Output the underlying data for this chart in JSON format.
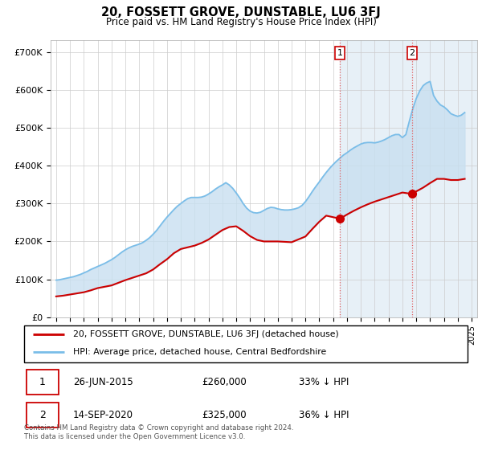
{
  "title": "20, FOSSETT GROVE, DUNSTABLE, LU6 3FJ",
  "subtitle": "Price paid vs. HM Land Registry's House Price Index (HPI)",
  "hpi_color": "#7abde8",
  "price_color": "#cc0000",
  "fill_color": "#c8dff0",
  "background_color": "#ffffff",
  "plot_bg_color": "#ffffff",
  "grid_color": "#cccccc",
  "ylim": [
    0,
    730000
  ],
  "yticks": [
    0,
    100000,
    200000,
    300000,
    400000,
    500000,
    600000,
    700000
  ],
  "ytick_labels": [
    "£0",
    "£100K",
    "£200K",
    "£300K",
    "£400K",
    "£500K",
    "£600K",
    "£700K"
  ],
  "xlim_start": 1994.6,
  "xlim_end": 2025.4,
  "transaction1_x": 2015.48,
  "transaction1_y": 260000,
  "transaction1_label": "1",
  "transaction2_x": 2020.71,
  "transaction2_y": 325000,
  "transaction2_label": "2",
  "span_color": "#ddeaf5",
  "legend_line1": "20, FOSSETT GROVE, DUNSTABLE, LU6 3FJ (detached house)",
  "legend_line2": "HPI: Average price, detached house, Central Bedfordshire",
  "table_row1": [
    "1",
    "26-JUN-2015",
    "£260,000",
    "33% ↓ HPI"
  ],
  "table_row2": [
    "2",
    "14-SEP-2020",
    "£325,000",
    "36% ↓ HPI"
  ],
  "footer": "Contains HM Land Registry data © Crown copyright and database right 2024.\nThis data is licensed under the Open Government Licence v3.0.",
  "hpi_data_x": [
    1995.0,
    1995.25,
    1995.5,
    1995.75,
    1996.0,
    1996.25,
    1996.5,
    1996.75,
    1997.0,
    1997.25,
    1997.5,
    1997.75,
    1998.0,
    1998.25,
    1998.5,
    1998.75,
    1999.0,
    1999.25,
    1999.5,
    1999.75,
    2000.0,
    2000.25,
    2000.5,
    2000.75,
    2001.0,
    2001.25,
    2001.5,
    2001.75,
    2002.0,
    2002.25,
    2002.5,
    2002.75,
    2003.0,
    2003.25,
    2003.5,
    2003.75,
    2004.0,
    2004.25,
    2004.5,
    2004.75,
    2005.0,
    2005.25,
    2005.5,
    2005.75,
    2006.0,
    2006.25,
    2006.5,
    2006.75,
    2007.0,
    2007.25,
    2007.5,
    2007.75,
    2008.0,
    2008.25,
    2008.5,
    2008.75,
    2009.0,
    2009.25,
    2009.5,
    2009.75,
    2010.0,
    2010.25,
    2010.5,
    2010.75,
    2011.0,
    2011.25,
    2011.5,
    2011.75,
    2012.0,
    2012.25,
    2012.5,
    2012.75,
    2013.0,
    2013.25,
    2013.5,
    2013.75,
    2014.0,
    2014.25,
    2014.5,
    2014.75,
    2015.0,
    2015.25,
    2015.5,
    2015.75,
    2016.0,
    2016.25,
    2016.5,
    2016.75,
    2017.0,
    2017.25,
    2017.5,
    2017.75,
    2018.0,
    2018.25,
    2018.5,
    2018.75,
    2019.0,
    2019.25,
    2019.5,
    2019.75,
    2020.0,
    2020.25,
    2020.5,
    2020.75,
    2021.0,
    2021.25,
    2021.5,
    2021.75,
    2022.0,
    2022.25,
    2022.5,
    2022.75,
    2023.0,
    2023.25,
    2023.5,
    2023.75,
    2024.0,
    2024.25,
    2024.5
  ],
  "hpi_data_y": [
    98000,
    99000,
    101000,
    103000,
    105000,
    107000,
    110000,
    113000,
    117000,
    121000,
    126000,
    130000,
    134000,
    138000,
    142000,
    147000,
    152000,
    158000,
    165000,
    172000,
    178000,
    183000,
    187000,
    190000,
    193000,
    197000,
    203000,
    210000,
    219000,
    229000,
    241000,
    253000,
    264000,
    274000,
    284000,
    293000,
    300000,
    307000,
    313000,
    316000,
    316000,
    316000,
    317000,
    320000,
    325000,
    331000,
    338000,
    344000,
    349000,
    355000,
    349000,
    340000,
    328000,
    315000,
    300000,
    288000,
    280000,
    276000,
    275000,
    277000,
    282000,
    287000,
    290000,
    289000,
    286000,
    284000,
    283000,
    283000,
    284000,
    286000,
    289000,
    295000,
    305000,
    318000,
    332000,
    345000,
    357000,
    370000,
    382000,
    393000,
    403000,
    412000,
    420000,
    428000,
    434000,
    441000,
    447000,
    452000,
    457000,
    460000,
    461000,
    461000,
    460000,
    462000,
    465000,
    469000,
    474000,
    479000,
    482000,
    482000,
    474000,
    482000,
    517000,
    550000,
    577000,
    597000,
    611000,
    618000,
    622000,
    585000,
    570000,
    560000,
    555000,
    547000,
    537000,
    533000,
    530000,
    533000,
    540000
  ],
  "price_data_x": [
    1995.0,
    1995.5,
    1996.0,
    1997.0,
    1997.5,
    1998.0,
    1999.0,
    1999.5,
    2000.0,
    2000.5,
    2001.0,
    2001.5,
    2002.0,
    2002.5,
    2003.0,
    2003.5,
    2004.0,
    2005.0,
    2005.5,
    2006.0,
    2007.0,
    2007.5,
    2008.0,
    2008.5,
    2009.0,
    2009.5,
    2010.0,
    2011.0,
    2012.0,
    2013.0,
    2013.5,
    2014.0,
    2014.5,
    2015.5,
    2016.0,
    2016.5,
    2017.0,
    2017.5,
    2018.0,
    2018.5,
    2019.0,
    2019.5,
    2020.0,
    2020.75,
    2021.0,
    2021.5,
    2022.0,
    2022.5,
    2023.0,
    2023.5,
    2024.0,
    2024.5
  ],
  "price_data_y": [
    55000,
    57000,
    60000,
    66000,
    71000,
    77000,
    84000,
    91000,
    98000,
    104000,
    110000,
    116000,
    126000,
    140000,
    153000,
    169000,
    180000,
    189000,
    196000,
    205000,
    230000,
    238000,
    240000,
    228000,
    214000,
    204000,
    200000,
    200000,
    198000,
    213000,
    233000,
    252000,
    268000,
    260000,
    271000,
    281000,
    290000,
    298000,
    305000,
    311000,
    317000,
    323000,
    329000,
    325000,
    332000,
    342000,
    354000,
    365000,
    365000,
    362000,
    362000,
    365000
  ]
}
